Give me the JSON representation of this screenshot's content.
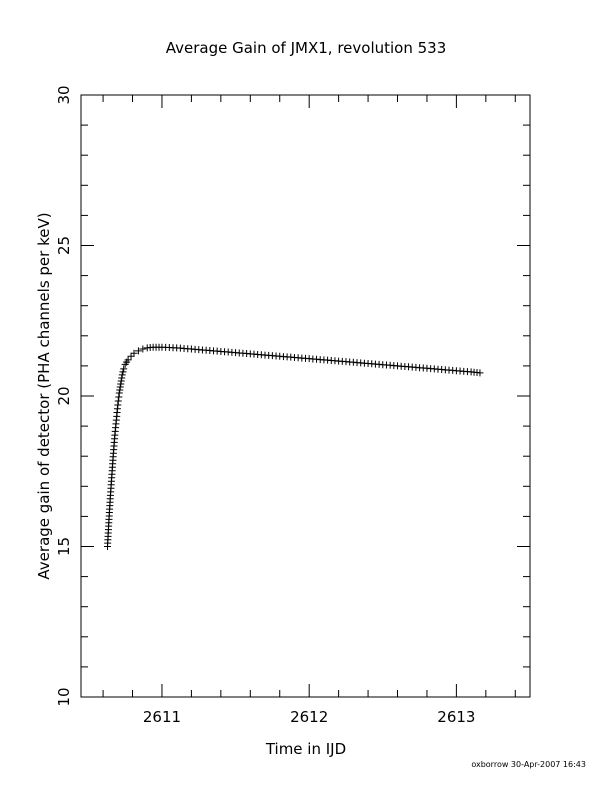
{
  "chart_data": {
    "type": "scatter",
    "title": "Average Gain of JMX1, revolution 533",
    "xlabel": "Time in IJD",
    "ylabel": "Average gain of detector (PHA channels per keV)",
    "xlim": [
      2610.45,
      2613.5
    ],
    "ylim": [
      10,
      30
    ],
    "xticks": [
      2611,
      2612,
      2613
    ],
    "xtick_labels": [
      "2611",
      "2612",
      "2613"
    ],
    "yticks": [
      10,
      15,
      20,
      25,
      30
    ],
    "ytick_labels": [
      "10",
      "15",
      "20",
      "25",
      "30"
    ],
    "marker": "plus",
    "grid": false,
    "legend": "none",
    "series": [
      {
        "x": [
          2610.63,
          2610.64,
          2610.65,
          2610.66,
          2610.67,
          2610.68,
          2610.69,
          2610.7,
          2610.71,
          2610.72,
          2610.73,
          2610.74,
          2610.75,
          2610.77,
          2610.79,
          2610.81,
          2610.84,
          2610.87,
          2610.9,
          2610.94,
          2611.0,
          2611.1,
          2611.3,
          2611.5,
          2611.7,
          2611.9,
          2612.1,
          2612.3,
          2612.5,
          2612.7,
          2612.9,
          2613.1,
          2613.16
        ],
        "values": [
          15.0,
          15.9,
          16.7,
          17.4,
          18.1,
          18.7,
          19.2,
          19.7,
          20.1,
          20.4,
          20.7,
          20.9,
          21.05,
          21.2,
          21.32,
          21.42,
          21.5,
          21.56,
          21.6,
          21.62,
          21.62,
          21.6,
          21.52,
          21.44,
          21.36,
          21.28,
          21.2,
          21.12,
          21.04,
          20.96,
          20.88,
          20.8,
          20.77
        ]
      }
    ]
  },
  "footer": "oxborrow 30-Apr-2007 16:43"
}
